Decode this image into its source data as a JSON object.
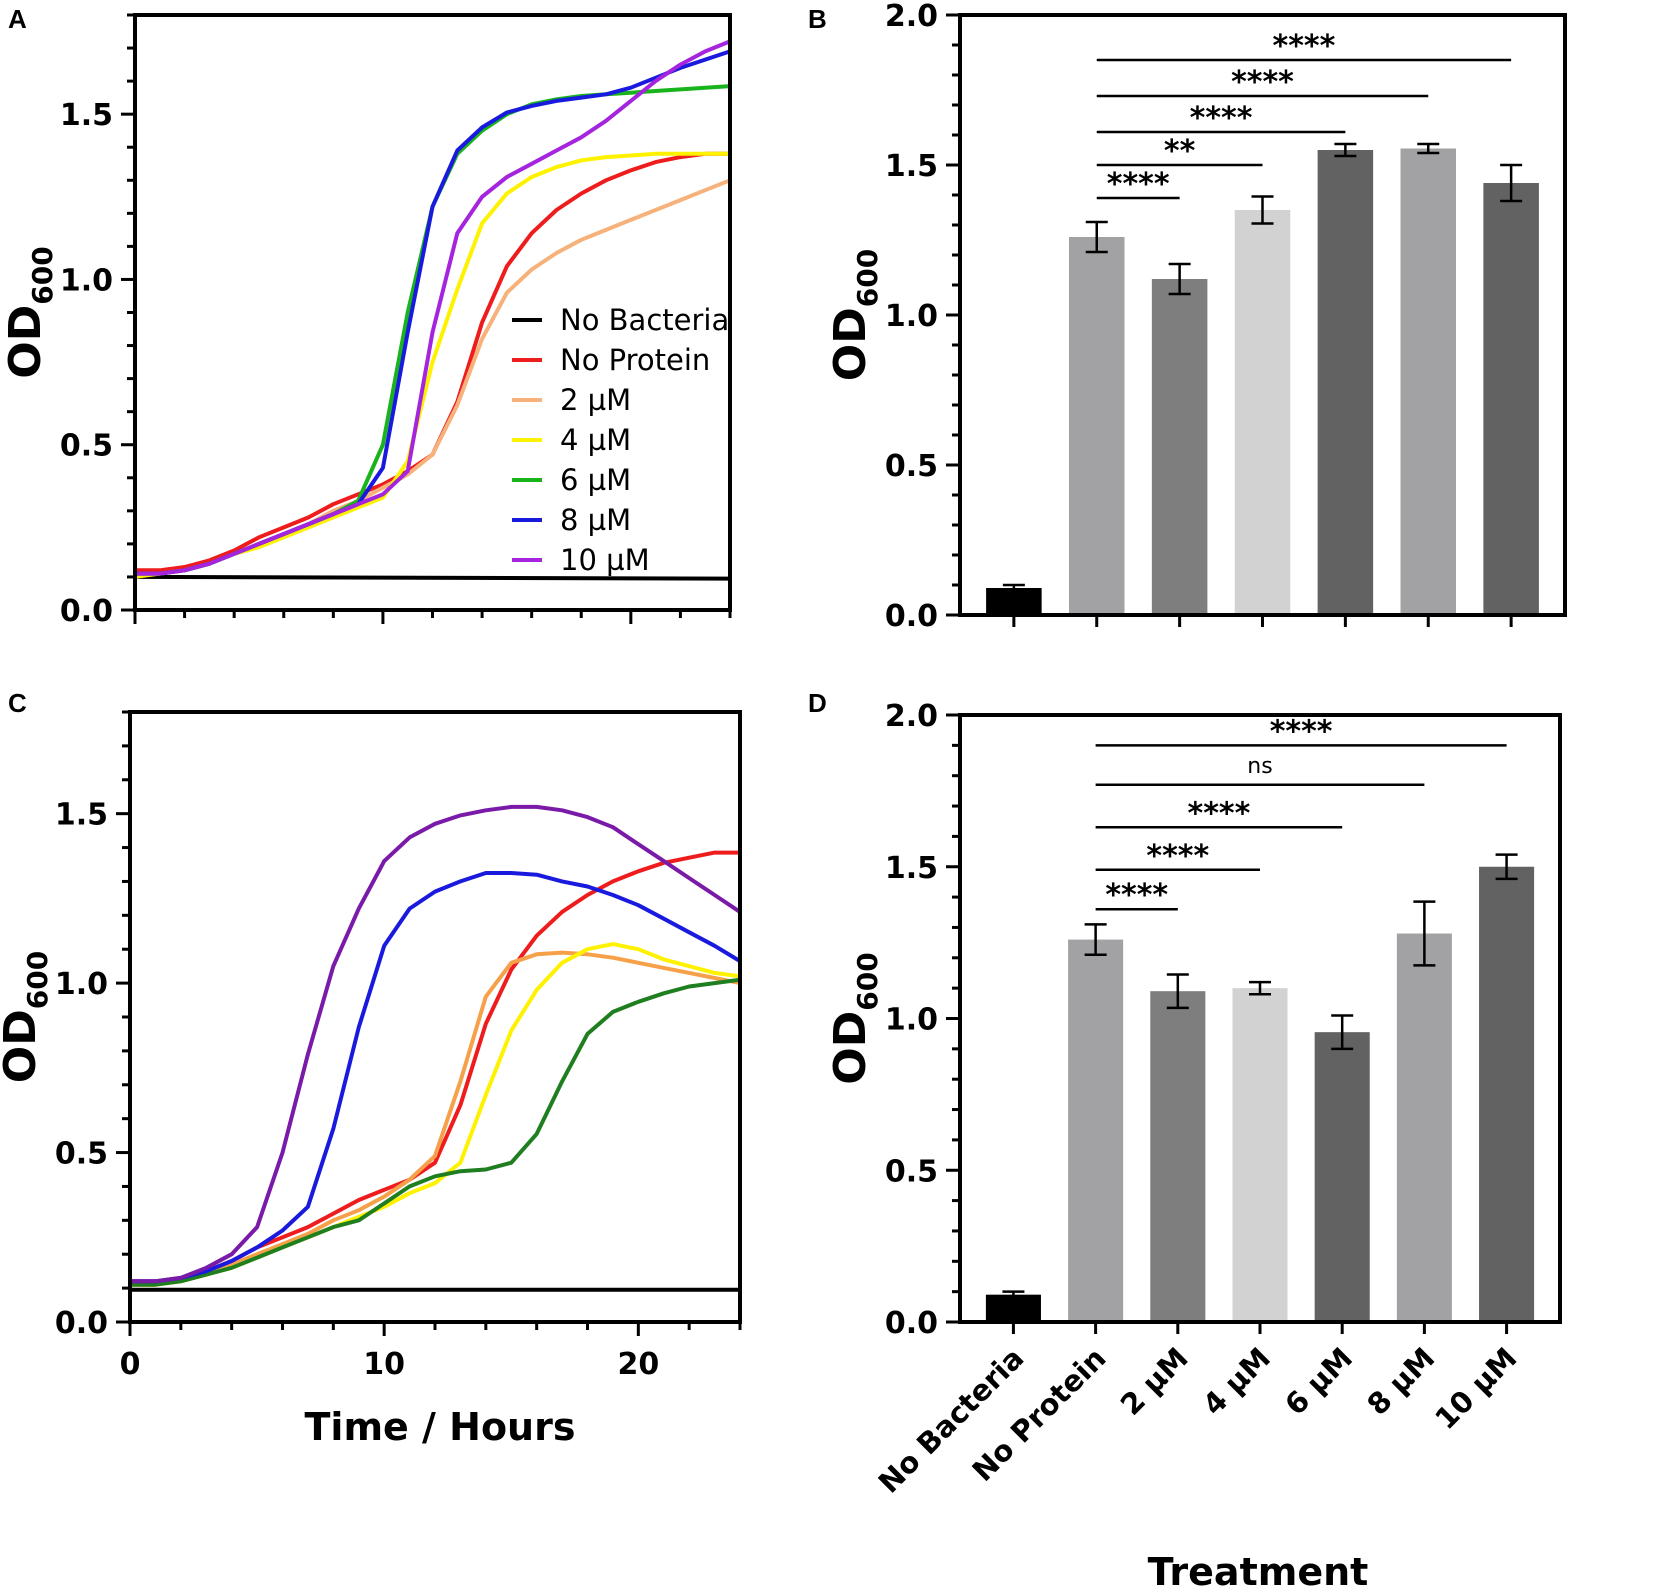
{
  "chart_data": [
    {
      "panel": "A",
      "type": "line",
      "xlabel": "",
      "ylabel": "OD600",
      "ylabel_main": "OD",
      "ylabel_sub": "600",
      "xlim": [
        0,
        24
      ],
      "ylim": [
        0,
        1.8
      ],
      "yticks": [
        "0.0",
        "0.5",
        "1.0",
        "1.5"
      ],
      "xticks": [],
      "legend": "right",
      "series": [
        {
          "name": "No Bacteria",
          "color": "#000000",
          "x": [
            0,
            24
          ],
          "y": [
            0.1,
            0.095
          ]
        },
        {
          "name": "No Protein",
          "color": "#ee1c1c",
          "x": [
            0,
            1,
            2,
            3,
            4,
            5,
            6,
            7,
            8,
            9,
            10,
            11,
            12,
            13,
            14,
            15,
            16,
            17,
            18,
            19,
            20,
            21,
            22,
            23,
            24
          ],
          "y": [
            0.12,
            0.12,
            0.13,
            0.15,
            0.18,
            0.22,
            0.25,
            0.28,
            0.32,
            0.35,
            0.38,
            0.42,
            0.47,
            0.63,
            0.87,
            1.04,
            1.14,
            1.21,
            1.26,
            1.3,
            1.33,
            1.355,
            1.37,
            1.38,
            1.38
          ]
        },
        {
          "name": "2 µM",
          "color": "#f6b27a",
          "x": [
            0,
            1,
            2,
            3,
            4,
            5,
            6,
            7,
            8,
            9,
            10,
            11,
            12,
            13,
            14,
            15,
            16,
            17,
            18,
            19,
            20,
            21,
            22,
            23,
            24
          ],
          "y": [
            0.11,
            0.11,
            0.12,
            0.14,
            0.17,
            0.2,
            0.23,
            0.26,
            0.3,
            0.33,
            0.37,
            0.41,
            0.47,
            0.62,
            0.82,
            0.96,
            1.03,
            1.08,
            1.12,
            1.15,
            1.18,
            1.21,
            1.24,
            1.27,
            1.3
          ]
        },
        {
          "name": "4 µM",
          "color": "#fef200",
          "x": [
            0,
            1,
            2,
            3,
            4,
            5,
            6,
            7,
            8,
            9,
            10,
            11,
            12,
            13,
            14,
            15,
            16,
            17,
            18,
            19,
            20,
            21,
            22,
            23,
            24
          ],
          "y": [
            0.1,
            0.11,
            0.12,
            0.14,
            0.17,
            0.19,
            0.22,
            0.25,
            0.28,
            0.31,
            0.34,
            0.45,
            0.75,
            0.97,
            1.17,
            1.26,
            1.31,
            1.34,
            1.36,
            1.37,
            1.375,
            1.38,
            1.38,
            1.38,
            1.38
          ]
        },
        {
          "name": "6 µM",
          "color": "#19b31e",
          "x": [
            0,
            1,
            2,
            3,
            4,
            5,
            6,
            7,
            8,
            9,
            10,
            11,
            12,
            13,
            14,
            15,
            16,
            17,
            18,
            19,
            20,
            21,
            22,
            23,
            24
          ],
          "y": [
            0.11,
            0.11,
            0.12,
            0.14,
            0.17,
            0.2,
            0.23,
            0.26,
            0.29,
            0.33,
            0.5,
            0.9,
            1.22,
            1.38,
            1.45,
            1.5,
            1.53,
            1.545,
            1.555,
            1.56,
            1.565,
            1.57,
            1.575,
            1.58,
            1.585
          ]
        },
        {
          "name": "8 µM",
          "color": "#1a1adf",
          "x": [
            0,
            1,
            2,
            3,
            4,
            5,
            6,
            7,
            8,
            9,
            10,
            11,
            12,
            13,
            14,
            15,
            16,
            17,
            18,
            19,
            20,
            21,
            22,
            23,
            24
          ],
          "y": [
            0.11,
            0.11,
            0.12,
            0.14,
            0.17,
            0.2,
            0.23,
            0.26,
            0.29,
            0.32,
            0.43,
            0.84,
            1.22,
            1.39,
            1.46,
            1.505,
            1.525,
            1.54,
            1.55,
            1.56,
            1.58,
            1.61,
            1.64,
            1.665,
            1.69
          ]
        },
        {
          "name": "10 µM",
          "color": "#a524de",
          "x": [
            0,
            1,
            2,
            3,
            4,
            5,
            6,
            7,
            8,
            9,
            10,
            11,
            12,
            13,
            14,
            15,
            16,
            17,
            18,
            19,
            20,
            21,
            22,
            23,
            24
          ],
          "y": [
            0.11,
            0.11,
            0.12,
            0.14,
            0.17,
            0.2,
            0.23,
            0.26,
            0.29,
            0.32,
            0.35,
            0.42,
            0.84,
            1.14,
            1.25,
            1.31,
            1.35,
            1.39,
            1.43,
            1.48,
            1.54,
            1.6,
            1.65,
            1.69,
            1.72
          ]
        }
      ]
    },
    {
      "panel": "B",
      "type": "bar",
      "xlabel": "",
      "ylabel": "OD600",
      "ylabel_main": "OD",
      "ylabel_sub": "600",
      "ylim": [
        0,
        2.0
      ],
      "yticks": [
        "0.0",
        "0.5",
        "1.0",
        "1.5",
        "2.0"
      ],
      "categories": [
        "No Bacteria",
        "No Protein",
        "2 µM",
        "4 µM",
        "6 µM",
        "8 µM",
        "10 µM"
      ],
      "values": [
        0.09,
        1.26,
        1.12,
        1.35,
        1.55,
        1.555,
        1.44
      ],
      "errors": [
        0.01,
        0.05,
        0.05,
        0.045,
        0.02,
        0.015,
        0.06
      ],
      "colors": [
        "#000000",
        "#a2a2a4",
        "#7e7e7e",
        "#d2d2d2",
        "#626262",
        "#a2a2a4",
        "#626262"
      ],
      "significance": [
        {
          "from": 1,
          "to": 2,
          "y": 1.39,
          "label": "****"
        },
        {
          "from": 1,
          "to": 3,
          "y": 1.5,
          "label": "**"
        },
        {
          "from": 1,
          "to": 4,
          "y": 1.61,
          "label": "****"
        },
        {
          "from": 1,
          "to": 5,
          "y": 1.73,
          "label": "****"
        },
        {
          "from": 1,
          "to": 6,
          "y": 1.85,
          "label": "****"
        }
      ]
    },
    {
      "panel": "C",
      "type": "line",
      "xlabel": "Time / Hours",
      "ylabel": "OD600",
      "ylabel_main": "OD",
      "ylabel_sub": "600",
      "xlim": [
        0,
        24
      ],
      "ylim": [
        0,
        1.8
      ],
      "yticks": [
        "0.0",
        "0.5",
        "1.0",
        "1.5"
      ],
      "xticks": [
        "0",
        "10",
        "20"
      ],
      "series": [
        {
          "name": "No Bacteria",
          "color": "#000000",
          "x": [
            0,
            24
          ],
          "y": [
            0.095,
            0.095
          ]
        },
        {
          "name": "No Protein",
          "color": "#ee1c1c",
          "x": [
            0,
            1,
            2,
            3,
            4,
            5,
            6,
            7,
            8,
            9,
            10,
            11,
            12,
            13,
            14,
            15,
            16,
            17,
            18,
            19,
            20,
            21,
            22,
            23,
            24
          ],
          "y": [
            0.12,
            0.12,
            0.13,
            0.15,
            0.18,
            0.22,
            0.25,
            0.28,
            0.32,
            0.36,
            0.39,
            0.42,
            0.47,
            0.64,
            0.88,
            1.04,
            1.14,
            1.21,
            1.26,
            1.3,
            1.33,
            1.355,
            1.37,
            1.385,
            1.385
          ]
        },
        {
          "name": "2 µM",
          "color": "#f6a04a",
          "x": [
            0,
            1,
            2,
            3,
            4,
            5,
            6,
            7,
            8,
            9,
            10,
            11,
            12,
            13,
            14,
            15,
            16,
            17,
            18,
            19,
            20,
            21,
            22,
            23,
            24
          ],
          "y": [
            0.11,
            0.11,
            0.12,
            0.14,
            0.17,
            0.2,
            0.23,
            0.26,
            0.3,
            0.33,
            0.37,
            0.42,
            0.49,
            0.71,
            0.96,
            1.06,
            1.085,
            1.09,
            1.085,
            1.075,
            1.06,
            1.045,
            1.03,
            1.015,
            1.0
          ]
        },
        {
          "name": "4 µM",
          "color": "#fef200",
          "x": [
            0,
            1,
            2,
            3,
            4,
            5,
            6,
            7,
            8,
            9,
            10,
            11,
            12,
            13,
            14,
            15,
            16,
            17,
            18,
            19,
            20,
            21,
            22,
            23,
            24
          ],
          "y": [
            0.11,
            0.11,
            0.12,
            0.14,
            0.16,
            0.19,
            0.22,
            0.25,
            0.28,
            0.31,
            0.34,
            0.38,
            0.41,
            0.47,
            0.67,
            0.86,
            0.98,
            1.06,
            1.1,
            1.115,
            1.1,
            1.07,
            1.05,
            1.03,
            1.02
          ]
        },
        {
          "name": "6 µM",
          "color": "#1f7e1f",
          "x": [
            0,
            1,
            2,
            3,
            4,
            5,
            6,
            7,
            8,
            9,
            10,
            11,
            12,
            13,
            14,
            15,
            16,
            17,
            18,
            19,
            20,
            21,
            22,
            23,
            24
          ],
          "y": [
            0.11,
            0.11,
            0.12,
            0.14,
            0.16,
            0.19,
            0.22,
            0.25,
            0.28,
            0.3,
            0.35,
            0.4,
            0.43,
            0.445,
            0.45,
            0.47,
            0.555,
            0.71,
            0.85,
            0.915,
            0.945,
            0.97,
            0.99,
            1.0,
            1.01
          ]
        },
        {
          "name": "8 µM",
          "color": "#1a1adf",
          "x": [
            0,
            1,
            2,
            3,
            4,
            5,
            6,
            7,
            8,
            9,
            10,
            11,
            12,
            13,
            14,
            15,
            16,
            17,
            18,
            19,
            20,
            21,
            22,
            23,
            24
          ],
          "y": [
            0.12,
            0.12,
            0.13,
            0.15,
            0.18,
            0.22,
            0.27,
            0.34,
            0.57,
            0.87,
            1.11,
            1.22,
            1.27,
            1.3,
            1.325,
            1.325,
            1.32,
            1.3,
            1.285,
            1.26,
            1.23,
            1.19,
            1.15,
            1.11,
            1.065
          ]
        },
        {
          "name": "10 µM",
          "color": "#7a1aa8",
          "x": [
            0,
            1,
            2,
            3,
            4,
            5,
            6,
            7,
            8,
            9,
            10,
            11,
            12,
            13,
            14,
            15,
            16,
            17,
            18,
            19,
            20,
            21,
            22,
            23,
            24
          ],
          "y": [
            0.12,
            0.12,
            0.13,
            0.16,
            0.2,
            0.28,
            0.5,
            0.79,
            1.05,
            1.22,
            1.36,
            1.43,
            1.47,
            1.495,
            1.51,
            1.52,
            1.52,
            1.51,
            1.49,
            1.46,
            1.41,
            1.36,
            1.31,
            1.26,
            1.21
          ]
        }
      ]
    },
    {
      "panel": "D",
      "type": "bar",
      "xlabel": "Treatment",
      "ylabel": "OD600",
      "ylabel_main": "OD",
      "ylabel_sub": "600",
      "ylim": [
        0,
        2.0
      ],
      "yticks": [
        "0.0",
        "0.5",
        "1.0",
        "1.5",
        "2.0"
      ],
      "categories": [
        "No Bacteria",
        "No Protein",
        "2 µM",
        "4 µM",
        "6 µM",
        "8 µM",
        "10 µM"
      ],
      "values": [
        0.09,
        1.26,
        1.09,
        1.1,
        0.955,
        1.28,
        1.5
      ],
      "errors": [
        0.01,
        0.05,
        0.055,
        0.02,
        0.055,
        0.105,
        0.04
      ],
      "colors": [
        "#000000",
        "#a2a2a4",
        "#7e7e7e",
        "#d2d2d2",
        "#626262",
        "#a2a2a4",
        "#626262"
      ],
      "significance": [
        {
          "from": 1,
          "to": 2,
          "y": 1.36,
          "label": "****"
        },
        {
          "from": 1,
          "to": 3,
          "y": 1.49,
          "label": "****"
        },
        {
          "from": 1,
          "to": 4,
          "y": 1.63,
          "label": "****"
        },
        {
          "from": 1,
          "to": 5,
          "y": 1.77,
          "label": "ns"
        },
        {
          "from": 1,
          "to": 6,
          "y": 1.9,
          "label": "****"
        }
      ]
    }
  ]
}
